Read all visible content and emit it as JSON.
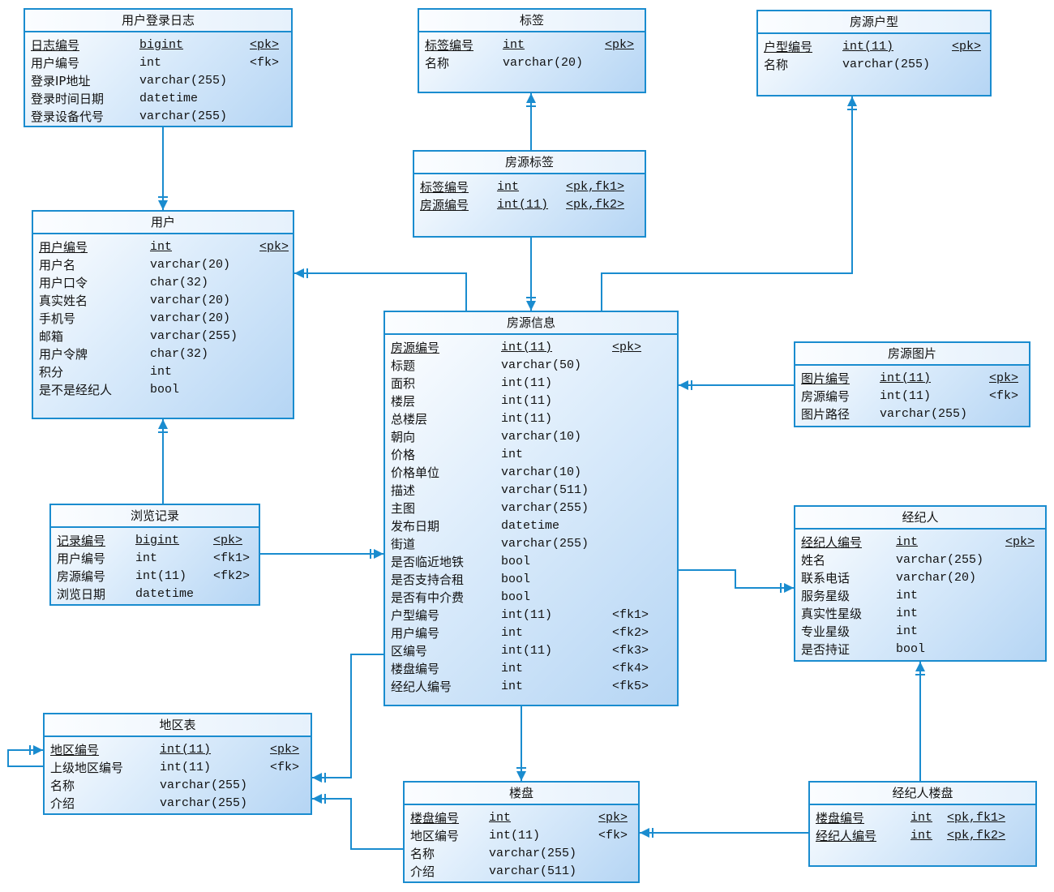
{
  "colors": {
    "border": "#1a8ccf",
    "line": "#1a8ccf",
    "fill_light": "#ffffff",
    "fill_dark": "#b5d5f4"
  },
  "entities": [
    {
      "id": "login-log",
      "title": "用户登录日志",
      "columns": [
        {
          "name": "日志编号",
          "type": "bigint",
          "key": "<pk>",
          "pk": true
        },
        {
          "name": "用户编号",
          "type": "int",
          "key": "<fk>"
        },
        {
          "name": "登录IP地址",
          "type": "varchar(255)",
          "key": ""
        },
        {
          "name": "登录时间日期",
          "type": "datetime",
          "key": ""
        },
        {
          "name": "登录设备代号",
          "type": "varchar(255)",
          "key": ""
        }
      ]
    },
    {
      "id": "tag",
      "title": "标签",
      "columns": [
        {
          "name": "标签编号",
          "type": "int",
          "key": "<pk>",
          "pk": true
        },
        {
          "name": "名称",
          "type": "varchar(20)",
          "key": ""
        }
      ]
    },
    {
      "id": "house-type",
      "title": "房源户型",
      "columns": [
        {
          "name": "户型编号",
          "type": "int(11)",
          "key": "<pk>",
          "pk": true
        },
        {
          "name": "名称",
          "type": "varchar(255)",
          "key": ""
        }
      ]
    },
    {
      "id": "house-tag",
      "title": "房源标签",
      "columns": [
        {
          "name": "标签编号",
          "type": "int",
          "key": "<pk,fk1>",
          "pk": true
        },
        {
          "name": "房源编号",
          "type": "int(11)",
          "key": "<pk,fk2>",
          "pk": true
        }
      ]
    },
    {
      "id": "user",
      "title": "用户",
      "columns": [
        {
          "name": "用户编号",
          "type": "int",
          "key": "<pk>",
          "pk": true
        },
        {
          "name": "用户名",
          "type": "varchar(20)",
          "key": ""
        },
        {
          "name": "用户口令",
          "type": "char(32)",
          "key": ""
        },
        {
          "name": "真实姓名",
          "type": "varchar(20)",
          "key": ""
        },
        {
          "name": "手机号",
          "type": "varchar(20)",
          "key": ""
        },
        {
          "name": "邮箱",
          "type": "varchar(255)",
          "key": ""
        },
        {
          "name": "用户令牌",
          "type": "char(32)",
          "key": ""
        },
        {
          "name": "积分",
          "type": "int",
          "key": ""
        },
        {
          "name": "是不是经纪人",
          "type": "bool",
          "key": ""
        }
      ]
    },
    {
      "id": "house-info",
      "title": "房源信息",
      "columns": [
        {
          "name": "房源编号",
          "type": "int(11)",
          "key": "<pk>",
          "pk": true
        },
        {
          "name": "标题",
          "type": "varchar(50)",
          "key": ""
        },
        {
          "name": "面积",
          "type": "int(11)",
          "key": ""
        },
        {
          "name": "楼层",
          "type": "int(11)",
          "key": ""
        },
        {
          "name": "总楼层",
          "type": "int(11)",
          "key": ""
        },
        {
          "name": "朝向",
          "type": "varchar(10)",
          "key": ""
        },
        {
          "name": "价格",
          "type": "int",
          "key": ""
        },
        {
          "name": "价格单位",
          "type": "varchar(10)",
          "key": ""
        },
        {
          "name": "描述",
          "type": "varchar(511)",
          "key": ""
        },
        {
          "name": "主图",
          "type": "varchar(255)",
          "key": ""
        },
        {
          "name": "发布日期",
          "type": "datetime",
          "key": ""
        },
        {
          "name": "街道",
          "type": "varchar(255)",
          "key": ""
        },
        {
          "name": "是否临近地铁",
          "type": "bool",
          "key": ""
        },
        {
          "name": "是否支持合租",
          "type": "bool",
          "key": ""
        },
        {
          "name": "是否有中介费",
          "type": "bool",
          "key": ""
        },
        {
          "name": "户型编号",
          "type": "int(11)",
          "key": "<fk1>"
        },
        {
          "name": "用户编号",
          "type": "int",
          "key": "<fk2>"
        },
        {
          "name": "区编号",
          "type": "int(11)",
          "key": "<fk3>"
        },
        {
          "name": "楼盘编号",
          "type": "int",
          "key": "<fk4>"
        },
        {
          "name": "经纪人编号",
          "type": "int",
          "key": "<fk5>"
        }
      ]
    },
    {
      "id": "house-image",
      "title": "房源图片",
      "columns": [
        {
          "name": "图片编号",
          "type": "int(11)",
          "key": "<pk>",
          "pk": true
        },
        {
          "name": "房源编号",
          "type": "int(11)",
          "key": "<fk>"
        },
        {
          "name": "图片路径",
          "type": "varchar(255)",
          "key": ""
        }
      ]
    },
    {
      "id": "browse-record",
      "title": "浏览记录",
      "columns": [
        {
          "name": "记录编号",
          "type": "bigint",
          "key": "<pk>",
          "pk": true
        },
        {
          "name": "用户编号",
          "type": "int",
          "key": "<fk1>"
        },
        {
          "name": "房源编号",
          "type": "int(11)",
          "key": "<fk2>"
        },
        {
          "name": "浏览日期",
          "type": "datetime",
          "key": ""
        }
      ]
    },
    {
      "id": "agent",
      "title": "经纪人",
      "columns": [
        {
          "name": "经纪人编号",
          "type": "int",
          "key": "<pk>",
          "pk": true
        },
        {
          "name": "姓名",
          "type": "varchar(255)",
          "key": ""
        },
        {
          "name": "联系电话",
          "type": "varchar(20)",
          "key": ""
        },
        {
          "name": "服务星级",
          "type": "int",
          "key": ""
        },
        {
          "name": "真实性星级",
          "type": "int",
          "key": ""
        },
        {
          "name": "专业星级",
          "type": "int",
          "key": ""
        },
        {
          "name": "是否持证",
          "type": "bool",
          "key": ""
        }
      ]
    },
    {
      "id": "region",
      "title": "地区表",
      "columns": [
        {
          "name": "地区编号",
          "type": "int(11)",
          "key": "<pk>",
          "pk": true
        },
        {
          "name": "上级地区编号",
          "type": "int(11)",
          "key": "<fk>"
        },
        {
          "name": "名称",
          "type": "varchar(255)",
          "key": ""
        },
        {
          "name": "介绍",
          "type": "varchar(255)",
          "key": ""
        }
      ]
    },
    {
      "id": "building",
      "title": "楼盘",
      "columns": [
        {
          "name": "楼盘编号",
          "type": "int",
          "key": "<pk>",
          "pk": true
        },
        {
          "name": "地区编号",
          "type": "int(11)",
          "key": "<fk>"
        },
        {
          "name": "名称",
          "type": "varchar(255)",
          "key": ""
        },
        {
          "name": "介绍",
          "type": "varchar(511)",
          "key": ""
        }
      ]
    },
    {
      "id": "agent-building",
      "title": "经纪人楼盘",
      "columns": [
        {
          "name": "楼盘编号",
          "type": "int",
          "key": "<pk,fk1>",
          "pk": true
        },
        {
          "name": "经纪人编号",
          "type": "int",
          "key": "<pk,fk2>",
          "pk": true
        }
      ]
    }
  ],
  "relationships": [
    {
      "from": "login-log",
      "to": "user"
    },
    {
      "from": "house-tag",
      "to": "tag"
    },
    {
      "from": "house-tag",
      "to": "house-info"
    },
    {
      "from": "house-info",
      "to": "user"
    },
    {
      "from": "house-info",
      "to": "house-type"
    },
    {
      "from": "house-image",
      "to": "house-info"
    },
    {
      "from": "browse-record",
      "to": "user"
    },
    {
      "from": "browse-record",
      "to": "house-info"
    },
    {
      "from": "house-info",
      "to": "agent"
    },
    {
      "from": "house-info",
      "to": "region"
    },
    {
      "from": "house-info",
      "to": "building"
    },
    {
      "from": "building",
      "to": "region"
    },
    {
      "from": "agent-building",
      "to": "building"
    },
    {
      "from": "agent-building",
      "to": "agent"
    },
    {
      "from": "region",
      "to": "region"
    }
  ]
}
